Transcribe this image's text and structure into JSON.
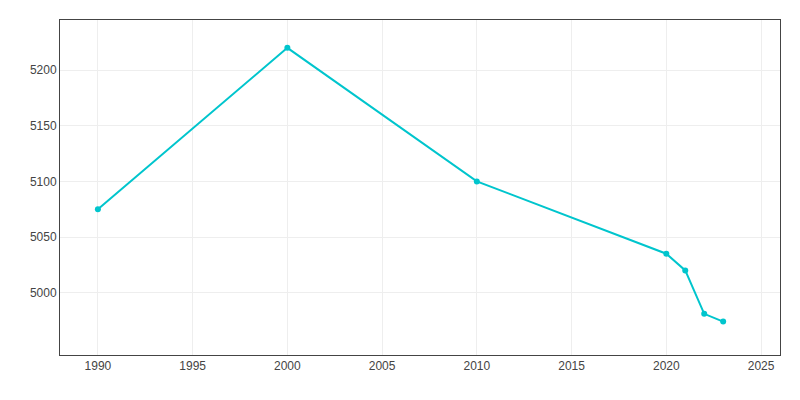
{
  "chart_data": {
    "type": "line",
    "x": [
      1990,
      2000,
      2010,
      2020,
      2021,
      2022,
      2023
    ],
    "values": [
      5075,
      5220,
      5100,
      5035,
      5020,
      4981,
      4974
    ],
    "color": "#00C5CD",
    "marker": "circle",
    "xlim": [
      1988,
      2026
    ],
    "xticks": [
      1990,
      1995,
      2000,
      2005,
      2010,
      2015,
      2020,
      2025
    ],
    "ylim": [
      4944,
      5245
    ],
    "yticks": [
      5000,
      5050,
      5100,
      5150,
      5200
    ],
    "grid": true
  }
}
